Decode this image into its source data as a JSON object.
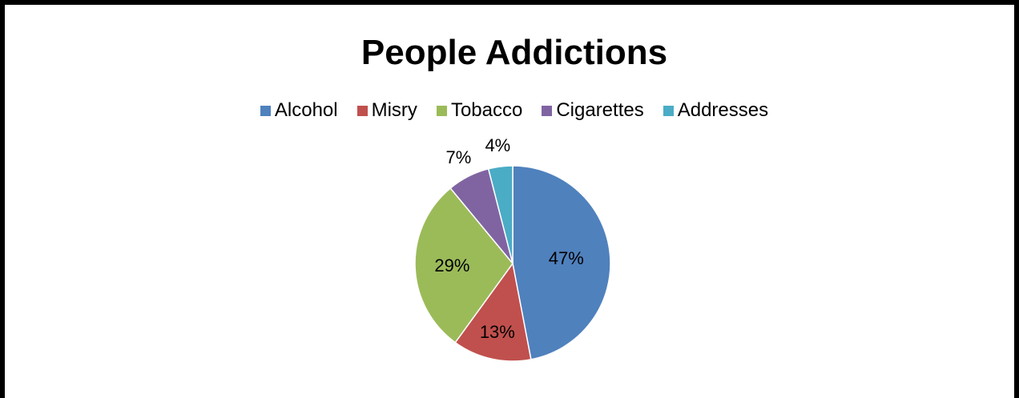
{
  "chart_data": {
    "type": "pie",
    "title": "People Addictions",
    "categories": [
      "Alcohol",
      "Misry",
      "Tobacco",
      "Cigarettes",
      "Addresses"
    ],
    "values": [
      47,
      13,
      29,
      7,
      4
    ],
    "labels": [
      "47%",
      "13%",
      "29%",
      "7%",
      "4%"
    ],
    "colors": [
      "#4F81BD",
      "#C0504D",
      "#9BBB59",
      "#8064A2",
      "#4BACC6"
    ],
    "legend_position": "top"
  }
}
